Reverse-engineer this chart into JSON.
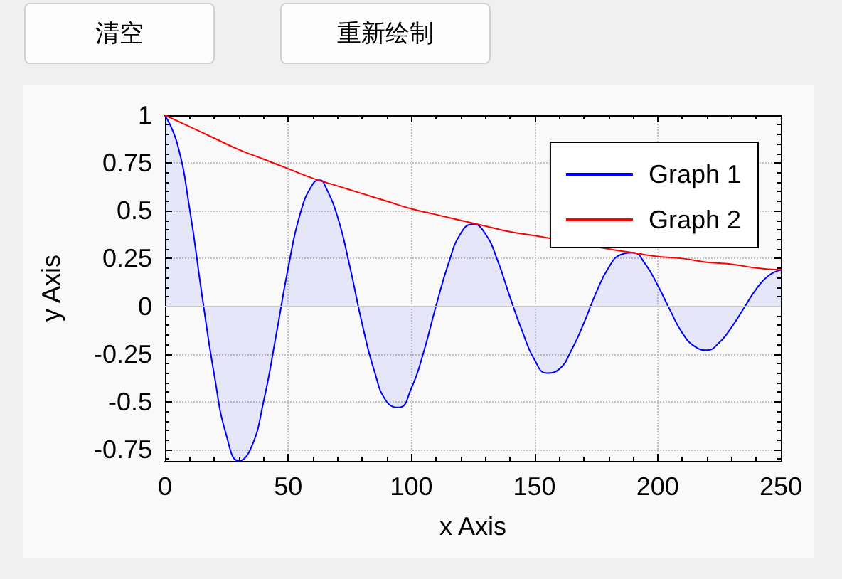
{
  "chart_data": {
    "type": "line",
    "xlabel": "x Axis",
    "ylabel": "y Axis",
    "annotations": [
      "清空",
      "重新绘制"
    ],
    "series": [
      {
        "name": "Graph 1",
        "type": "area",
        "color": "#0000ff",
        "x": [
          0,
          5,
          10,
          15,
          20,
          25,
          30,
          35,
          40,
          45,
          50,
          55,
          60,
          63,
          65,
          70,
          75,
          80,
          85,
          90,
          95,
          100,
          105,
          110,
          115,
          120,
          125,
          130,
          135,
          140,
          145,
          150,
          155,
          160,
          165,
          170,
          175,
          180,
          185,
          190,
          195,
          200,
          205,
          210,
          215,
          220,
          225,
          230,
          235,
          240,
          245,
          250
        ],
        "values": [
          1,
          0.85,
          0.51,
          0.06,
          -0.36,
          -0.68,
          -0.81,
          -0.74,
          -0.5,
          -0.16,
          0.2,
          0.49,
          0.64,
          0.66,
          0.63,
          0.47,
          0.21,
          -0.09,
          -0.34,
          -0.5,
          -0.53,
          -0.43,
          -0.24,
          0,
          0.22,
          0.38,
          0.43,
          0.38,
          0.24,
          0.05,
          -0.13,
          -0.28,
          -0.35,
          -0.33,
          -0.23,
          -0.09,
          0.07,
          0.2,
          0.27,
          0.28,
          0.22,
          0.11,
          -0.02,
          -0.14,
          -0.21,
          -0.23,
          -0.19,
          -0.11,
          -0.01,
          0.09,
          0.16,
          0.19
        ]
      },
      {
        "name": "Graph 2",
        "color": "#ff0000",
        "x": [
          0,
          10,
          20,
          30,
          40,
          50,
          60,
          70,
          80,
          90,
          100,
          110,
          120,
          130,
          140,
          150,
          160,
          170,
          180,
          190,
          200,
          210,
          220,
          230,
          240,
          250
        ],
        "values": [
          1,
          0.94,
          0.88,
          0.82,
          0.77,
          0.72,
          0.67,
          0.63,
          0.59,
          0.55,
          0.51,
          0.48,
          0.45,
          0.42,
          0.39,
          0.37,
          null,
          null,
          0.3,
          0.28,
          0.26,
          0.25,
          0.23,
          0.22,
          0.2,
          0.19
        ]
      }
    ],
    "xlim": [
      0,
      250
    ],
    "ylim": [
      -0.81,
      1
    ],
    "xticks": [
      0,
      50,
      100,
      150,
      200,
      250
    ],
    "yticks": [
      -0.75,
      -0.5,
      -0.25,
      0,
      0.25,
      0.5,
      0.75,
      1
    ],
    "grid": true,
    "legend": "top right",
    "marker": "none",
    "ref_lines": [
      {
        "axis": "y",
        "value": 0,
        "color": "#c8c8c8"
      }
    ]
  }
}
